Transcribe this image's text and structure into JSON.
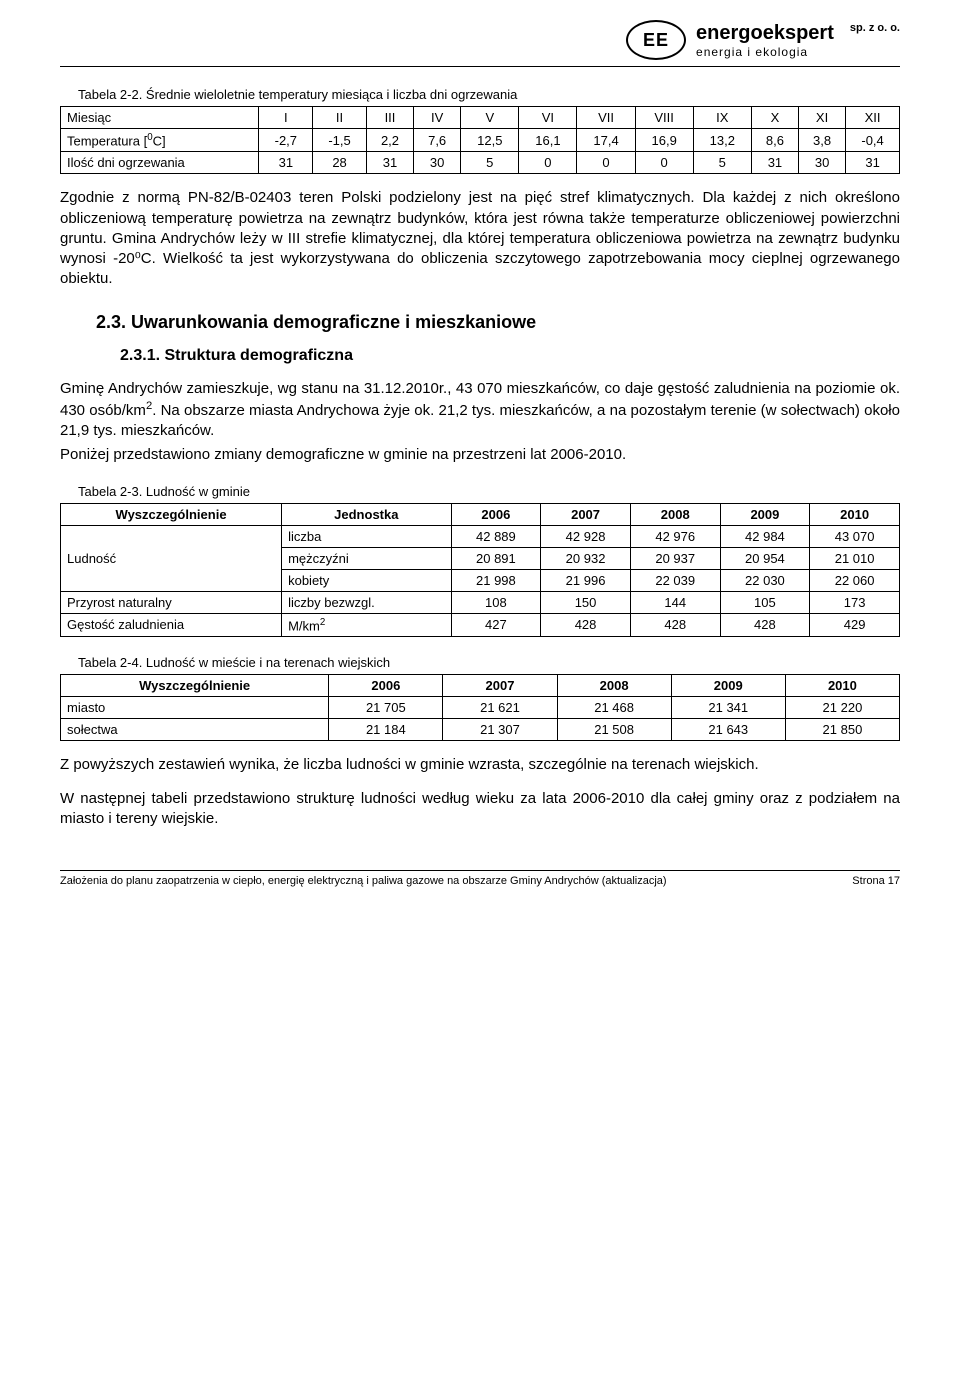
{
  "header": {
    "logo_text": "EE",
    "brand_main": "energoekspert",
    "brand_sub": "energia  i  ekologia",
    "brand_legal": "sp. z o. o."
  },
  "table22": {
    "caption": "Tabela 2-2. Średnie wieloletnie temperatury miesiąca i liczba dni ogrzewania",
    "row_miesiac_label": "Miesiąc",
    "months": [
      "I",
      "II",
      "III",
      "IV",
      "V",
      "VI",
      "VII",
      "VIII",
      "IX",
      "X",
      "XI",
      "XII"
    ],
    "temp_label": "Temperatura [",
    "temp_unit_sup": "0",
    "temp_unit_post": "C]",
    "temps": [
      "-2,7",
      "-1,5",
      "2,2",
      "7,6",
      "12,5",
      "16,1",
      "17,4",
      "16,9",
      "13,2",
      "8,6",
      "3,8",
      "-0,4"
    ],
    "days_label": "Ilość dni ogrzewania",
    "days": [
      "31",
      "28",
      "31",
      "30",
      "5",
      "0",
      "0",
      "0",
      "5",
      "31",
      "30",
      "31"
    ]
  },
  "para1": "Zgodnie z normą PN-82/B-02403 teren Polski podzielony jest na pięć stref klimatycznych. Dla każdej z nich określono obliczeniową temperaturę powietrza na zewnątrz budynków, która jest równa także temperaturze obliczeniowej powierzchni gruntu. Gmina Andrychów leży w III strefie klimatycznej, dla której temperatura obliczeniowa powietrza na zewnątrz budynku wynosi -20⁰C. Wielkość ta jest wykorzystywana do obliczenia szczytowego zapotrzebowania mocy cieplnej ogrzewanego obiektu.",
  "h23": "2.3. Uwarunkowania demograficzne i mieszkaniowe",
  "h231": "2.3.1. Struktura demograficzna",
  "para2_a": "Gminę Andrychów zamieszkuje, wg stanu na 31.12.2010r., 43 070 mieszkańców, co daje gęstość zaludnienia na poziomie ok. 430 osób/km",
  "para2_sup": "2",
  "para2_b": ". Na obszarze miasta Andrychowa żyje ok. 21,2 tys. mieszkańców, a na pozostałym terenie (w sołectwach) około 21,9 tys. mieszkańców.",
  "para3": "Poniżej przedstawiono zmiany demograficzne w gminie na przestrzeni lat 2006-2010.",
  "table23": {
    "caption": "Tabela 2-3. Ludność w gminie",
    "headers": [
      "Wyszczególnienie",
      "Jednostka",
      "2006",
      "2007",
      "2008",
      "2009",
      "2010"
    ],
    "ludnosc_label": "Ludność",
    "rows_sub": [
      {
        "unit": "liczba",
        "vals": [
          "42 889",
          "42 928",
          "42 976",
          "42 984",
          "43 070"
        ]
      },
      {
        "unit": "mężczyźni",
        "vals": [
          "20 891",
          "20 932",
          "20 937",
          "20 954",
          "21 010"
        ]
      },
      {
        "unit": "kobiety",
        "vals": [
          "21 998",
          "21 996",
          "22 039",
          "22 030",
          "22 060"
        ]
      }
    ],
    "row_przyrost": {
      "label": "Przyrost naturalny",
      "unit": "liczby bezwzgl.",
      "vals": [
        "108",
        "150",
        "144",
        "105",
        "173"
      ]
    },
    "row_gestosc": {
      "label": "Gęstość zaludnienia",
      "unit_pre": "M/km",
      "unit_sup": "2",
      "vals": [
        "427",
        "428",
        "428",
        "428",
        "429"
      ]
    }
  },
  "table24": {
    "caption": "Tabela 2-4. Ludność w mieście i na terenach wiejskich",
    "headers": [
      "Wyszczególnienie",
      "2006",
      "2007",
      "2008",
      "2009",
      "2010"
    ],
    "rows": [
      {
        "label": "miasto",
        "vals": [
          "21 705",
          "21 621",
          "21 468",
          "21 341",
          "21 220"
        ]
      },
      {
        "label": "sołectwa",
        "vals": [
          "21 184",
          "21 307",
          "21 508",
          "21 643",
          "21 850"
        ]
      }
    ]
  },
  "para4": "Z powyższych zestawień wynika, że liczba ludności w gminie wzrasta, szczególnie na terenach wiejskich.",
  "para5": "W następnej tabeli przedstawiono strukturę ludności według wieku za lata 2006-2010 dla całej gminy oraz z podziałem na miasto i tereny wiejskie.",
  "footer": {
    "left": "Założenia do planu zaopatrzenia w ciepło, energię elektryczną i paliwa gazowe na obszarze Gminy Andrychów (aktualizacja)",
    "right": "Strona 17"
  },
  "style": {
    "body_font": "Arial",
    "text_color": "#000000",
    "background": "#ffffff",
    "border_color": "#000000"
  }
}
